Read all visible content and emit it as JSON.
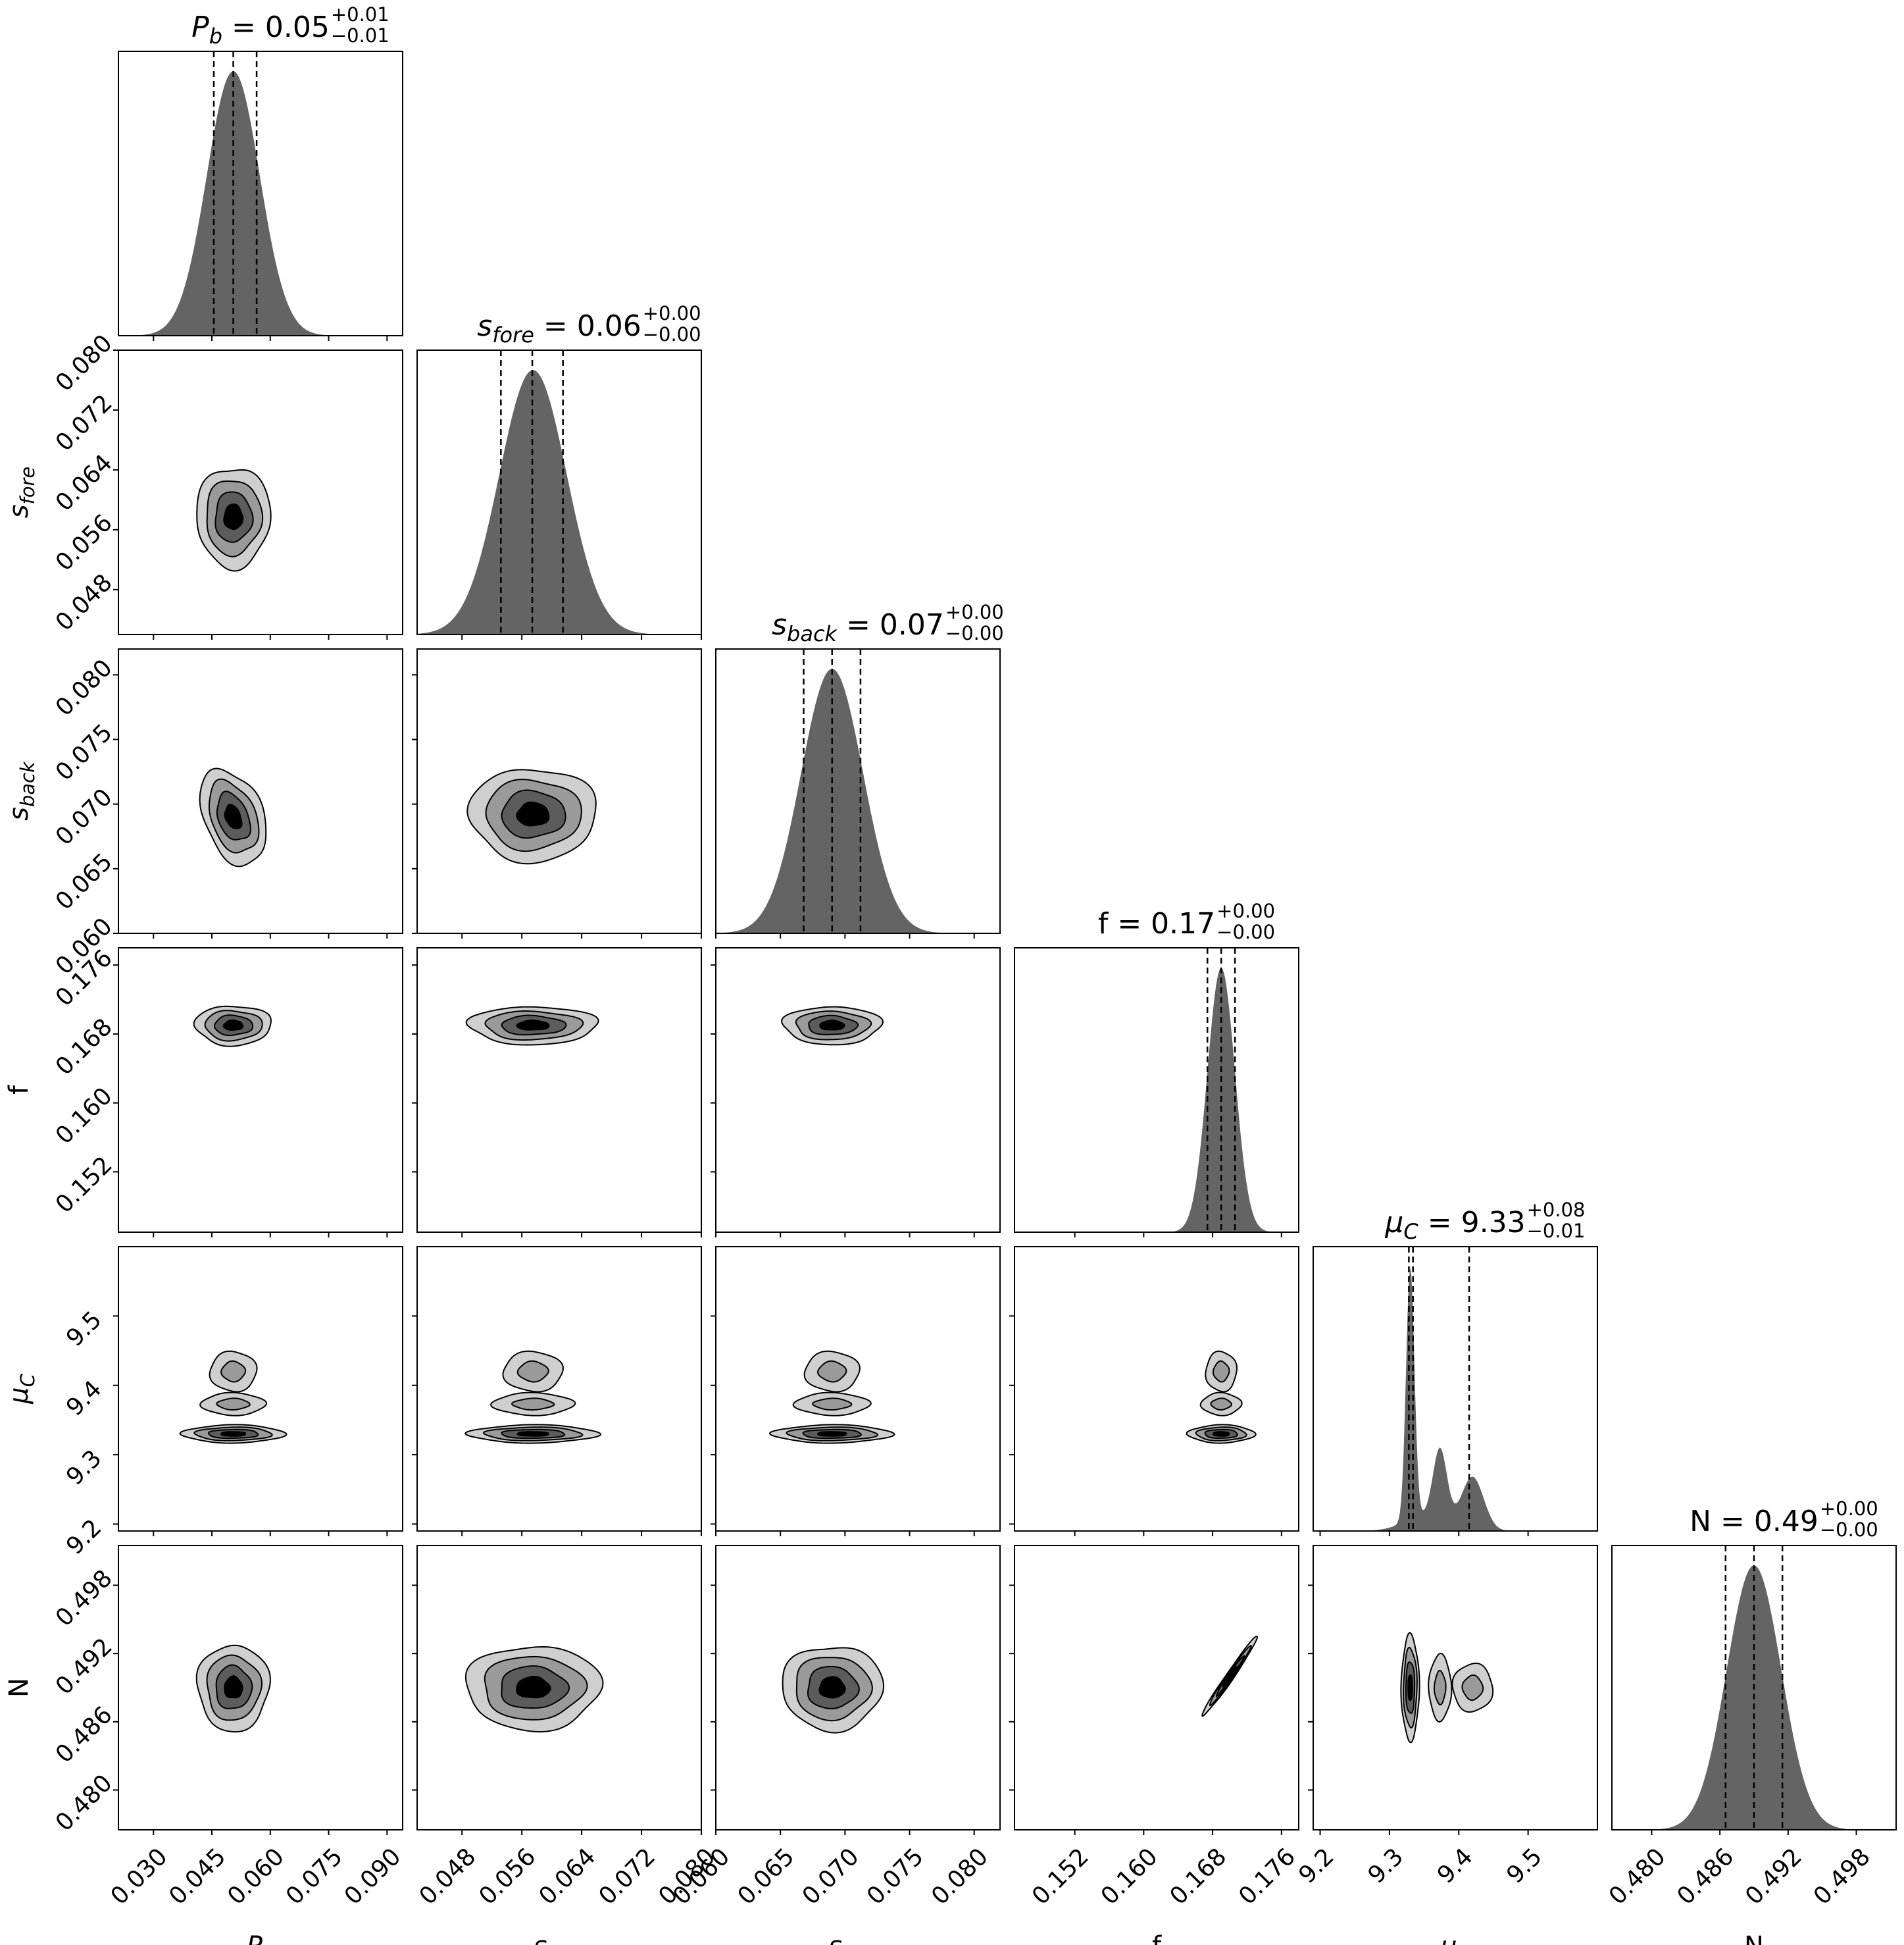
{
  "chart_data": {
    "type": "corner",
    "parameters": [
      {
        "key": "Pb",
        "sym": "P",
        "sub": "b",
        "label": "P_b",
        "range": [
          0.021,
          0.094
        ],
        "ticks": [
          "0.030",
          "0.045",
          "0.060",
          "0.075",
          "0.090"
        ],
        "tick_values": [
          0.03,
          0.045,
          0.06,
          0.075,
          0.09
        ],
        "marginal": {
          "mu": 0.0505,
          "sigma": 0.0068
        },
        "quantiles": [
          0.0455,
          0.0505,
          0.0565
        ],
        "title": {
          "value": "0.05",
          "plus": "+0.01",
          "minus": "−0.01"
        }
      },
      {
        "key": "sfore",
        "sym": "s",
        "sub": "fore",
        "label": "s_fore",
        "range": [
          0.042,
          0.08
        ],
        "ticks": [
          "0.048",
          "0.056",
          "0.064",
          "0.072",
          "0.080"
        ],
        "tick_values": [
          0.048,
          0.056,
          0.064,
          0.072,
          0.08
        ],
        "marginal": {
          "mu": 0.0575,
          "sigma": 0.0045
        },
        "quantiles": [
          0.0532,
          0.0574,
          0.0615
        ],
        "title": {
          "value": "0.06",
          "plus": "+0.00",
          "minus": "−0.00"
        }
      },
      {
        "key": "sback",
        "sym": "s",
        "sub": "back",
        "label": "s_back",
        "range": [
          0.06,
          0.082
        ],
        "ticks": [
          "0.060",
          "0.065",
          "0.070",
          "0.075",
          "0.080"
        ],
        "tick_values": [
          0.06,
          0.065,
          0.07,
          0.075,
          0.08
        ],
        "marginal": {
          "mu": 0.069,
          "sigma": 0.0024
        },
        "quantiles": [
          0.0668,
          0.069,
          0.0712
        ],
        "title": {
          "value": "0.07",
          "plus": "+0.00",
          "minus": "−0.00"
        }
      },
      {
        "key": "f",
        "sym": "f",
        "sub": "",
        "label": "f",
        "range": [
          0.145,
          0.178
        ],
        "ticks": [
          "0.152",
          "0.160",
          "0.168",
          "0.176"
        ],
        "tick_values": [
          0.152,
          0.16,
          0.168,
          0.176
        ],
        "marginal": {
          "mu": 0.169,
          "sigma": 0.0016
        },
        "quantiles": [
          0.1674,
          0.169,
          0.1706
        ],
        "title": {
          "value": "0.17",
          "plus": "+0.00",
          "minus": "−0.00"
        }
      },
      {
        "key": "muC",
        "sym": "μ",
        "sub": "C",
        "label": "μ_C",
        "range": [
          9.19,
          9.6
        ],
        "ticks": [
          "9.2",
          "9.3",
          "9.4",
          "9.5"
        ],
        "tick_values": [
          9.2,
          9.3,
          9.4,
          9.5
        ],
        "marginal": {
          "peaks": [
            {
              "mu": 9.33,
              "sigma": 0.006,
              "amp": 1.0
            },
            {
              "mu": 9.373,
              "sigma": 0.01,
              "amp": 0.28
            },
            {
              "mu": 9.42,
              "sigma": 0.016,
              "amp": 0.21
            },
            {
              "mu": 9.352,
              "sigma": 0.03,
              "amp": 0.06
            }
          ]
        },
        "quantiles": [
          9.328,
          9.334,
          9.415
        ],
        "title": {
          "value": "9.33",
          "plus": "+0.08",
          "minus": "−0.01"
        }
      },
      {
        "key": "N",
        "sym": "N",
        "sub": "",
        "label": "N",
        "range": [
          0.4765,
          0.5015
        ],
        "ticks": [
          "0.480",
          "0.486",
          "0.492",
          "0.498"
        ],
        "tick_values": [
          0.48,
          0.486,
          0.492,
          0.498
        ],
        "marginal": {
          "mu": 0.489,
          "sigma": 0.0024
        },
        "quantiles": [
          0.4865,
          0.489,
          0.4915
        ],
        "title": {
          "value": "0.49",
          "plus": "+0.00",
          "minus": "−0.00"
        }
      }
    ],
    "joint": {
      "sfore|Pb": {
        "cx": 0.0505,
        "cy": 0.0577,
        "sx": 0.0095,
        "sy": 0.0067,
        "rho": 0.0
      },
      "sback|Pb": {
        "cx": 0.0505,
        "cy": 0.069,
        "sx": 0.0085,
        "sy": 0.0037,
        "rho": -0.35
      },
      "sback|sfore": {
        "cx": 0.0575,
        "cy": 0.0692,
        "sx": 0.0085,
        "sy": 0.0036,
        "rho": 0.0
      },
      "f|Pb": {
        "cx": 0.0505,
        "cy": 0.169,
        "sx": 0.0098,
        "sy": 0.0023,
        "rho": 0.0
      },
      "f|sfore": {
        "cx": 0.0575,
        "cy": 0.169,
        "sx": 0.0086,
        "sy": 0.0022,
        "rho": 0.0
      },
      "f|sback": {
        "cx": 0.069,
        "cy": 0.169,
        "sx": 0.0038,
        "sy": 0.0022,
        "rho": 0.0
      },
      "N|Pb": {
        "cx": 0.0505,
        "cy": 0.489,
        "sx": 0.0092,
        "sy": 0.0038,
        "rho": 0.0
      },
      "N|sfore": {
        "cx": 0.0575,
        "cy": 0.489,
        "sx": 0.009,
        "sy": 0.0037,
        "rho": 0.0
      },
      "N|sback": {
        "cx": 0.069,
        "cy": 0.489,
        "sx": 0.0039,
        "sy": 0.0037,
        "rho": 0.0
      },
      "N|f": {
        "cx": 0.17,
        "cy": 0.49,
        "sx": 0.0032,
        "sy": 0.0035,
        "rho": 0.985
      }
    },
    "levels_sigma": [
      0.5,
      1.0,
      1.5,
      2.0
    ],
    "fill_colors": [
      "#000000",
      "#5c5c5c",
      "#9a9a9a",
      "#cfcfcf"
    ],
    "hist_color": "#646464",
    "title_fontsize_label": "large"
  }
}
